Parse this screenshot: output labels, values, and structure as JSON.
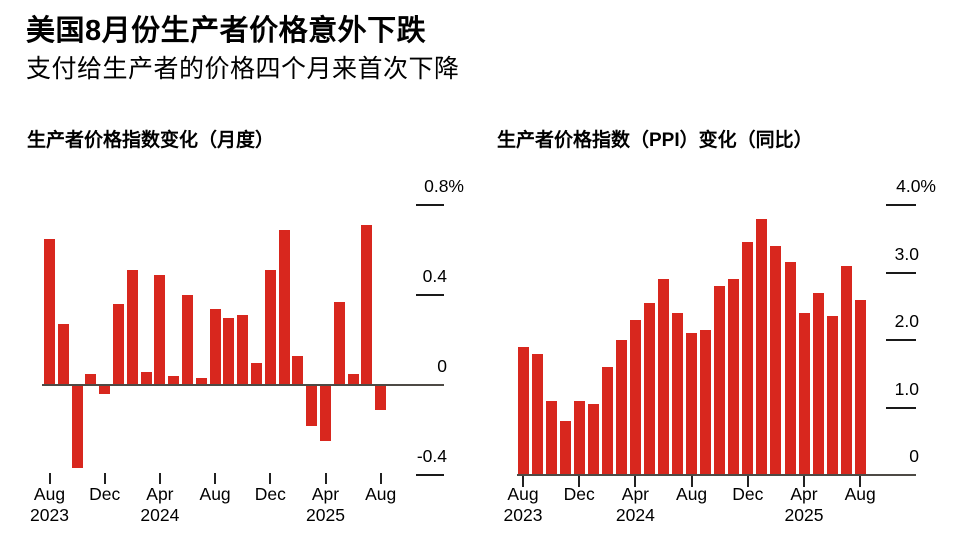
{
  "header": {
    "title": "美国8月份生产者价格意外下跌",
    "subtitle": "支付给生产者的价格四个月来首次下降"
  },
  "colors": {
    "bar": "#d8271e",
    "axis_line": "#4d4a45",
    "tick": "#222222",
    "text": "#000000",
    "background": "#ffffff"
  },
  "chart_data": [
    {
      "type": "bar",
      "title": "生产者价格指数变化（月度）",
      "unit": "%",
      "grid": "right-side tick dashes only",
      "legend": "none",
      "ylim": [
        -0.5,
        0.8
      ],
      "x": [
        "Aug 2023",
        "Sep 2023",
        "Oct 2023",
        "Nov 2023",
        "Dec 2023",
        "Jan 2024",
        "Feb 2024",
        "Mar 2024",
        "Apr 2024",
        "May 2024",
        "Jun 2024",
        "Jul 2024",
        "Aug 2024",
        "Sep 2024",
        "Oct 2024",
        "Nov 2024",
        "Dec 2024",
        "Jan 2025",
        "Feb 2025",
        "Mar 2025",
        "Apr 2025",
        "May 2025",
        "Jun 2025",
        "Jul 2025",
        "Aug 2025"
      ],
      "values": [
        0.65,
        0.27,
        -0.37,
        0.05,
        -0.04,
        0.36,
        0.51,
        0.06,
        0.49,
        0.04,
        0.4,
        0.03,
        0.34,
        0.3,
        0.31,
        0.1,
        0.51,
        0.69,
        0.13,
        -0.18,
        -0.25,
        0.37,
        0.05,
        0.71,
        -0.11
      ],
      "yticks": [
        {
          "label": "0.8%",
          "value": 0.8
        },
        {
          "label": "0.4",
          "value": 0.4
        },
        {
          "label": "0",
          "value": 0
        },
        {
          "label": "-0.4",
          "value": -0.4
        }
      ],
      "xticks": [
        {
          "label": "Aug",
          "year": "2023",
          "month_index": 0
        },
        {
          "label": "Dec",
          "year": "",
          "month_index": 4
        },
        {
          "label": "Apr",
          "year": "2024",
          "month_index": 8
        },
        {
          "label": "Aug",
          "year": "",
          "month_index": 12
        },
        {
          "label": "Dec",
          "year": "",
          "month_index": 16
        },
        {
          "label": "Apr",
          "year": "2025",
          "month_index": 20
        },
        {
          "label": "Aug",
          "year": "",
          "month_index": 24
        }
      ]
    },
    {
      "type": "bar",
      "title": "生产者价格指数（PPI）变化（同比）",
      "unit": "%",
      "grid": "right-side tick dashes only",
      "legend": "none",
      "ylim": [
        0,
        4.0
      ],
      "x": [
        "Aug 2023",
        "Sep 2023",
        "Oct 2023",
        "Nov 2023",
        "Dec 2023",
        "Jan 2024",
        "Feb 2024",
        "Mar 2024",
        "Apr 2024",
        "May 2024",
        "Jun 2024",
        "Jul 2024",
        "Aug 2024",
        "Sep 2024",
        "Oct 2024",
        "Nov 2024",
        "Dec 2024",
        "Jan 2025",
        "Feb 2025",
        "Mar 2025",
        "Apr 2025",
        "May 2025",
        "Jun 2025",
        "Jul 2025",
        "Aug 2025"
      ],
      "values": [
        1.9,
        1.8,
        1.1,
        0.8,
        1.1,
        1.05,
        1.6,
        2.0,
        2.3,
        2.55,
        2.9,
        2.4,
        2.1,
        2.15,
        2.8,
        2.9,
        3.45,
        3.8,
        3.4,
        3.15,
        2.4,
        2.7,
        2.35,
        3.1,
        2.6
      ],
      "yticks": [
        {
          "label": "4.0%",
          "value": 4.0
        },
        {
          "label": "3.0",
          "value": 3.0
        },
        {
          "label": "2.0",
          "value": 2.0
        },
        {
          "label": "1.0",
          "value": 1.0
        },
        {
          "label": "0",
          "value": 0
        }
      ],
      "xticks": [
        {
          "label": "Aug",
          "year": "2023",
          "month_index": 0
        },
        {
          "label": "Dec",
          "year": "",
          "month_index": 4
        },
        {
          "label": "Apr",
          "year": "2024",
          "month_index": 8
        },
        {
          "label": "Aug",
          "year": "",
          "month_index": 12
        },
        {
          "label": "Dec",
          "year": "",
          "month_index": 16
        },
        {
          "label": "Apr",
          "year": "2025",
          "month_index": 20
        },
        {
          "label": "Aug",
          "year": "",
          "month_index": 24
        }
      ]
    }
  ]
}
